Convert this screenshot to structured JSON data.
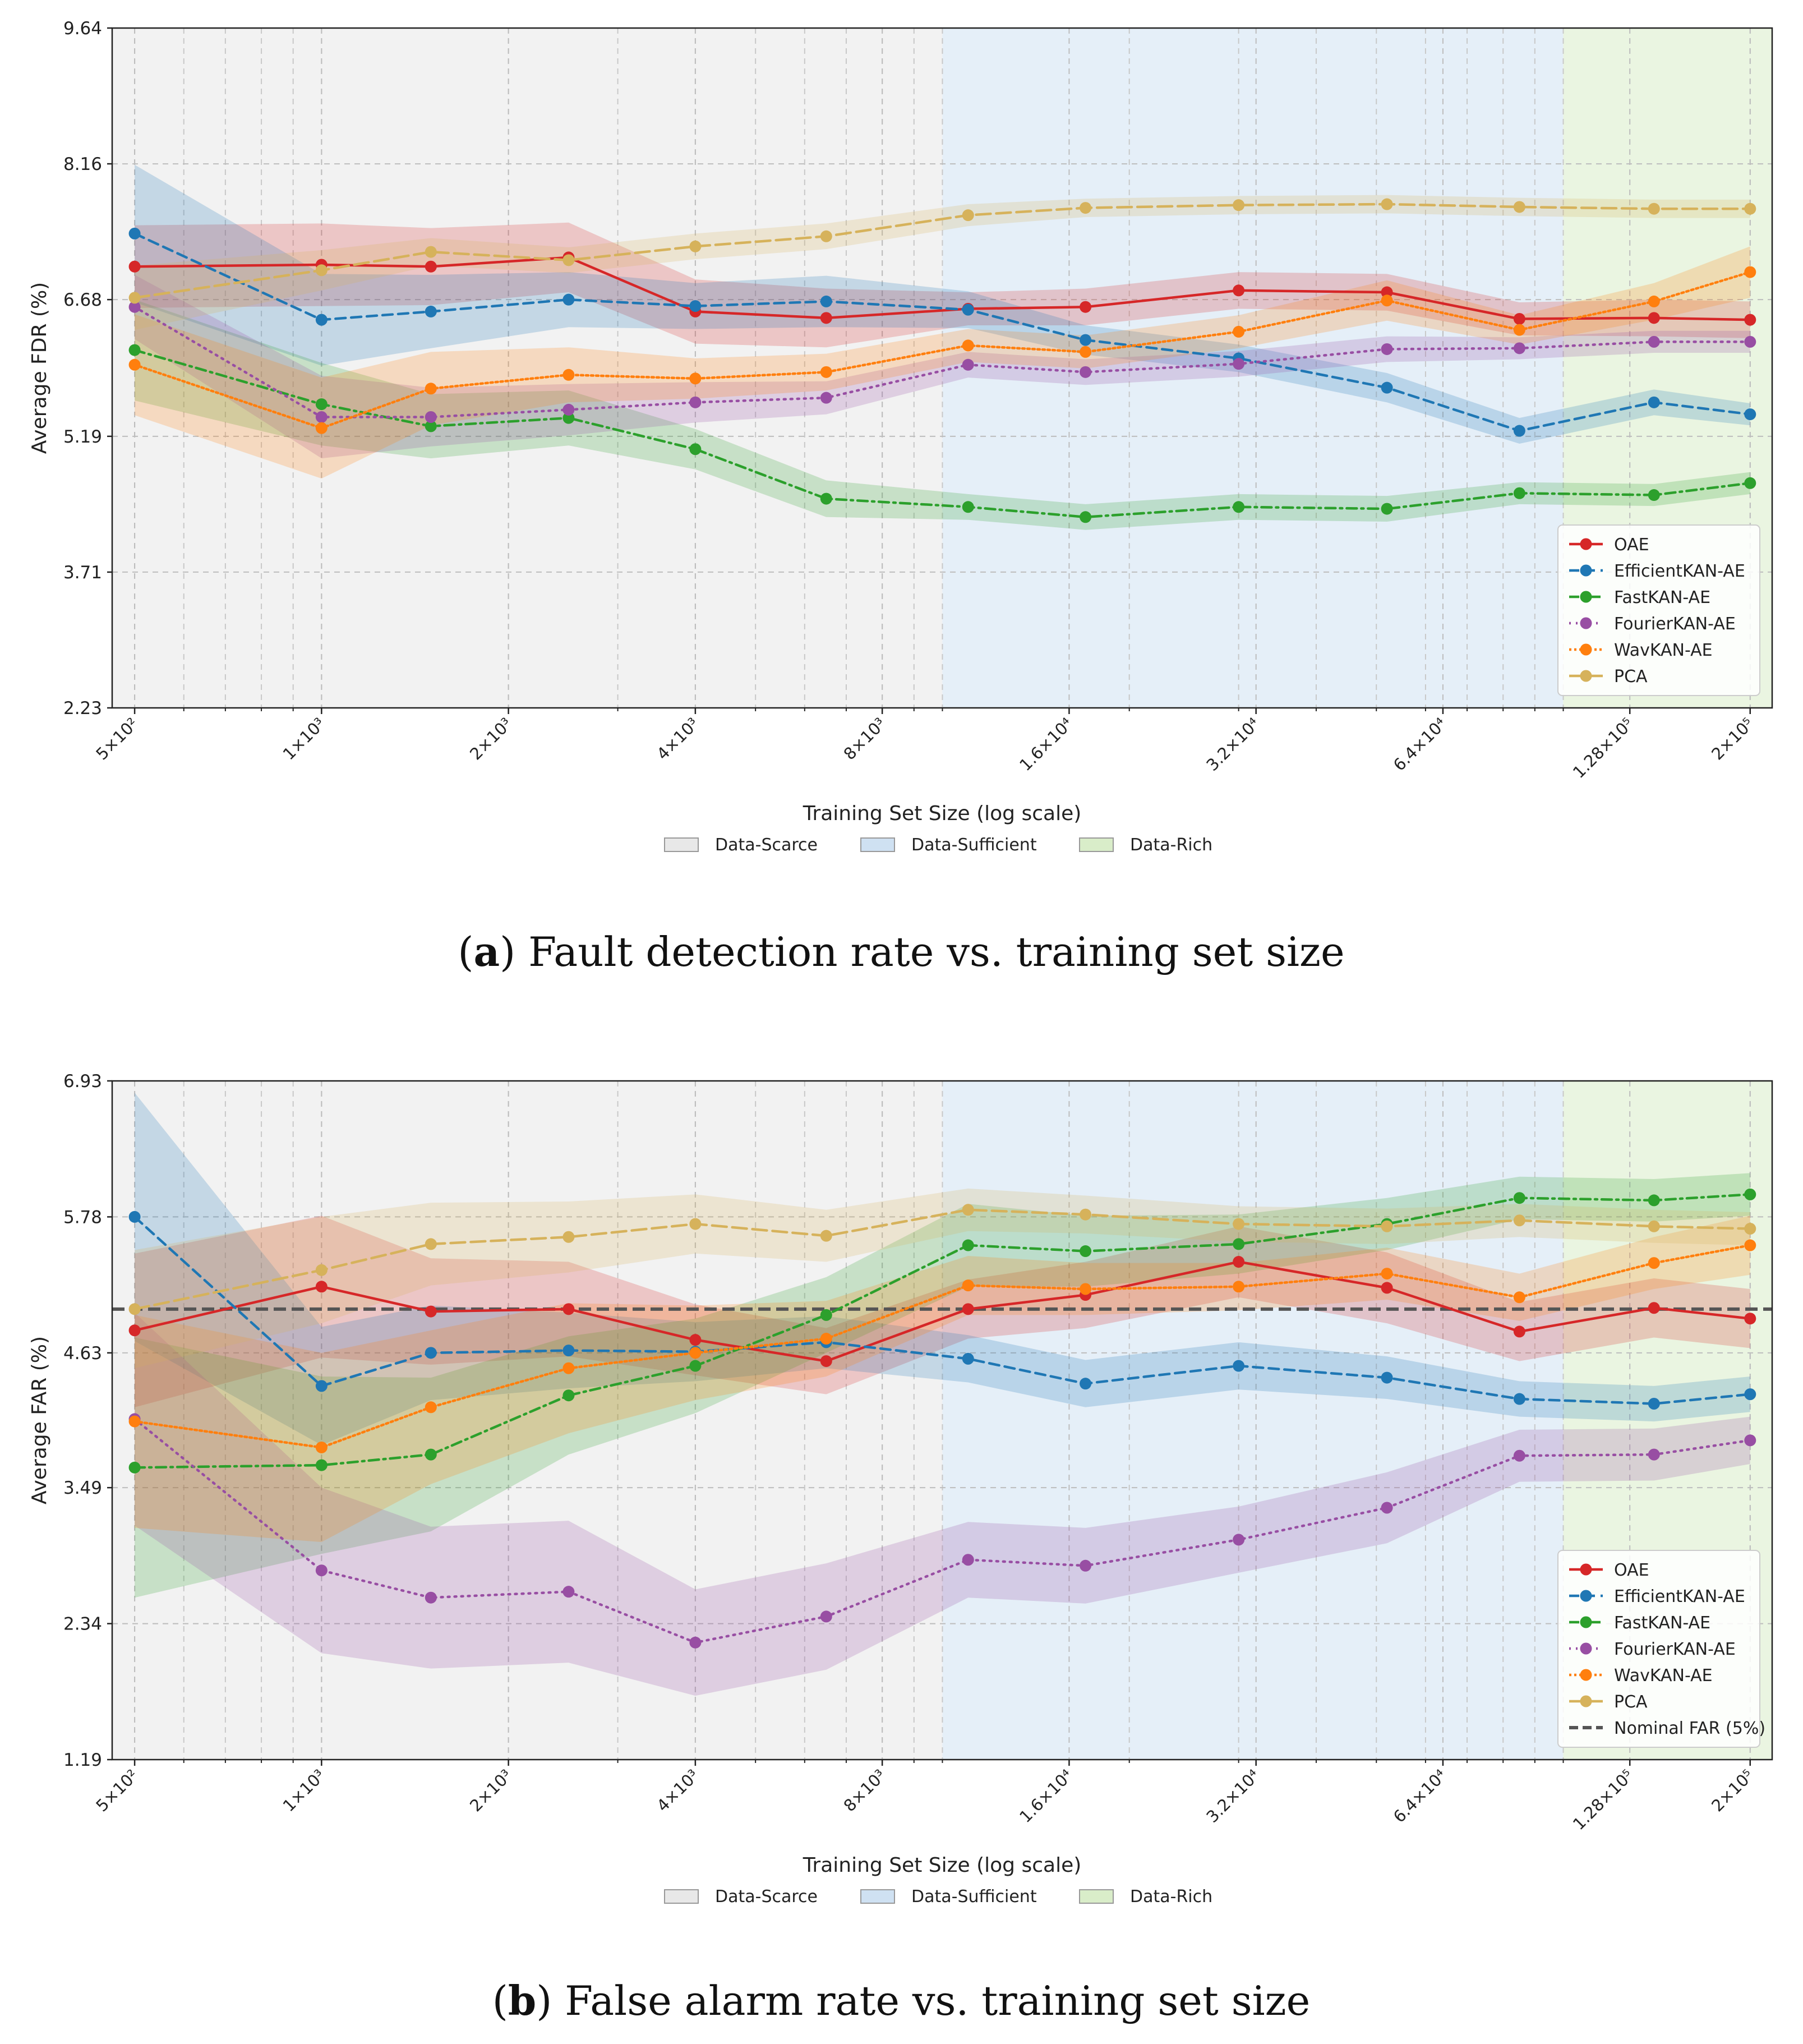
{
  "chart_data": [
    {
      "type": "line",
      "ylabel": "Average FDR (%)",
      "xlabel": "Training Set Size (log scale)",
      "xscale": "log",
      "xlim": [
        460,
        217000
      ],
      "ylim": [
        2.23,
        9.64
      ],
      "yticks": [
        "2.23",
        "3.71",
        "5.19",
        "6.68",
        "8.16",
        "9.64"
      ],
      "x_tick_values": [
        500,
        1000,
        2000,
        4000,
        8000,
        16000,
        32000,
        64000,
        128000,
        200000
      ],
      "x_tick_labels": [
        "5×10²",
        "1×10³",
        "2×10³",
        "4×10³",
        "8×10³",
        "1.6×10⁴",
        "3.2×10⁴",
        "6.4×10⁴",
        "1.28×10⁵",
        "2×10⁵"
      ],
      "x": [
        500,
        1000,
        1500,
        2500,
        4000,
        6500,
        11000,
        17000,
        30000,
        52000,
        85000,
        140000,
        200000
      ],
      "regions": [
        {
          "name": "Data-Scarce",
          "from": 460,
          "to": 10000,
          "color": "#e8e8e8"
        },
        {
          "name": "Data-Sufficient",
          "from": 10000,
          "to": 100000,
          "color": "#cfe1f2"
        },
        {
          "name": "Data-Rich",
          "from": 100000,
          "to": 217000,
          "color": "#d9edc9"
        }
      ],
      "series": [
        {
          "name": "OAE",
          "color": "#d62728",
          "dash": "solid",
          "values": [
            7.04,
            7.06,
            7.04,
            7.14,
            6.55,
            6.48,
            6.58,
            6.6,
            6.78,
            6.76,
            6.47,
            6.48,
            6.46
          ],
          "band": [
            0.45,
            0.45,
            0.42,
            0.38,
            0.35,
            0.32,
            0.18,
            0.2,
            0.2,
            0.2,
            0.18,
            0.2,
            0.2
          ]
        },
        {
          "name": "EfficientKAN-AE",
          "color": "#1f77b4",
          "dash": "dashed",
          "values": [
            7.4,
            6.46,
            6.55,
            6.68,
            6.61,
            6.66,
            6.57,
            6.24,
            6.04,
            5.72,
            5.25,
            5.56,
            5.43
          ],
          "band": [
            0.75,
            0.5,
            0.4,
            0.3,
            0.25,
            0.28,
            0.2,
            0.16,
            0.15,
            0.16,
            0.14,
            0.14,
            0.12
          ]
        },
        {
          "name": "FastKAN-AE",
          "color": "#2ca02c",
          "dash": "dashdot",
          "values": [
            6.13,
            5.54,
            5.3,
            5.39,
            5.05,
            4.51,
            4.42,
            4.31,
            4.42,
            4.4,
            4.57,
            4.55,
            4.68
          ],
          "band": [
            0.55,
            0.45,
            0.35,
            0.3,
            0.22,
            0.2,
            0.14,
            0.14,
            0.14,
            0.14,
            0.12,
            0.12,
            0.12
          ]
        },
        {
          "name": "FourierKAN-AE",
          "color": "#984ea3",
          "dash": "dotted",
          "values": [
            6.6,
            5.4,
            5.4,
            5.48,
            5.56,
            5.61,
            5.97,
            5.89,
            5.98,
            6.14,
            6.15,
            6.22,
            6.22
          ],
          "band": [
            0.35,
            0.45,
            0.32,
            0.28,
            0.22,
            0.18,
            0.14,
            0.14,
            0.14,
            0.14,
            0.12,
            0.12,
            0.12
          ]
        },
        {
          "name": "WavKAN-AE",
          "color": "#ff7f0e",
          "dash": "densedot",
          "values": [
            5.97,
            5.28,
            5.71,
            5.86,
            5.82,
            5.89,
            6.18,
            6.11,
            6.33,
            6.67,
            6.35,
            6.66,
            6.98
          ],
          "band": [
            0.55,
            0.55,
            0.4,
            0.3,
            0.22,
            0.2,
            0.18,
            0.18,
            0.18,
            0.22,
            0.16,
            0.2,
            0.28
          ]
        },
        {
          "name": "PCA",
          "color": "#d6b25b",
          "dash": "longdash",
          "values": [
            6.7,
            7.0,
            7.2,
            7.11,
            7.26,
            7.37,
            7.6,
            7.68,
            7.71,
            7.72,
            7.69,
            7.67,
            7.67
          ],
          "band": [
            0.35,
            0.22,
            0.15,
            0.14,
            0.14,
            0.14,
            0.12,
            0.1,
            0.1,
            0.1,
            0.1,
            0.1,
            0.1
          ]
        }
      ],
      "legend_position": "lower right",
      "legend_entries": [
        "OAE",
        "EfficientKAN-AE",
        "FastKAN-AE",
        "FourierKAN-AE",
        "WavKAN-AE",
        "PCA"
      ],
      "caption_bold": "a",
      "caption_text": "Fault detection rate vs. training set size"
    },
    {
      "type": "line",
      "ylabel": "Average FAR (%)",
      "xlabel": "Training Set Size (log scale)",
      "xscale": "log",
      "xlim": [
        460,
        217000
      ],
      "ylim": [
        1.19,
        6.93
      ],
      "yticks": [
        "1.19",
        "2.34",
        "3.49",
        "4.63",
        "5.78",
        "6.93"
      ],
      "x_tick_values": [
        500,
        1000,
        2000,
        4000,
        8000,
        16000,
        32000,
        64000,
        128000,
        200000
      ],
      "x_tick_labels": [
        "5×10²",
        "1×10³",
        "2×10³",
        "4×10³",
        "8×10³",
        "1.6×10⁴",
        "3.2×10⁴",
        "6.4×10⁴",
        "1.28×10⁵",
        "2×10⁵"
      ],
      "x": [
        500,
        1000,
        1500,
        2500,
        4000,
        6500,
        11000,
        17000,
        30000,
        52000,
        85000,
        140000,
        200000
      ],
      "regions": [
        {
          "name": "Data-Scarce",
          "from": 460,
          "to": 10000,
          "color": "#e8e8e8"
        },
        {
          "name": "Data-Sufficient",
          "from": 10000,
          "to": 100000,
          "color": "#cfe1f2"
        },
        {
          "name": "Data-Rich",
          "from": 100000,
          "to": 217000,
          "color": "#d9edc9"
        }
      ],
      "series": [
        {
          "name": "OAE",
          "color": "#d62728",
          "dash": "solid",
          "values": [
            4.82,
            5.19,
            4.98,
            5.0,
            4.74,
            4.56,
            5.0,
            5.12,
            5.4,
            5.18,
            4.81,
            5.01,
            4.92
          ],
          "band": [
            0.65,
            0.6,
            0.45,
            0.4,
            0.3,
            0.28,
            0.25,
            0.28,
            0.3,
            0.3,
            0.25,
            0.25,
            0.25
          ]
        },
        {
          "name": "EfficientKAN-AE",
          "color": "#1f77b4",
          "dash": "dashed",
          "values": [
            5.78,
            4.35,
            4.63,
            4.65,
            4.64,
            4.72,
            4.58,
            4.37,
            4.52,
            4.42,
            4.24,
            4.2,
            4.28
          ],
          "band": [
            1.05,
            0.5,
            0.4,
            0.32,
            0.25,
            0.22,
            0.2,
            0.2,
            0.2,
            0.18,
            0.15,
            0.15,
            0.15
          ]
        },
        {
          "name": "FastKAN-AE",
          "color": "#2ca02c",
          "dash": "dashdot",
          "values": [
            3.66,
            3.68,
            3.77,
            4.27,
            4.52,
            4.95,
            5.54,
            5.49,
            5.55,
            5.72,
            5.94,
            5.92,
            5.97
          ],
          "band": [
            1.1,
            0.75,
            0.65,
            0.5,
            0.4,
            0.32,
            0.35,
            0.3,
            0.25,
            0.22,
            0.18,
            0.18,
            0.18
          ]
        },
        {
          "name": "FourierKAN-AE",
          "color": "#984ea3",
          "dash": "dotted",
          "values": [
            4.07,
            2.79,
            2.56,
            2.61,
            2.18,
            2.4,
            2.88,
            2.83,
            3.05,
            3.32,
            3.76,
            3.77,
            3.89
          ],
          "band": [
            0.9,
            0.7,
            0.6,
            0.6,
            0.45,
            0.45,
            0.32,
            0.32,
            0.28,
            0.3,
            0.22,
            0.22,
            0.2
          ]
        },
        {
          "name": "WavKAN-AE",
          "color": "#ff7f0e",
          "dash": "densedot",
          "values": [
            4.05,
            3.83,
            4.17,
            4.5,
            4.63,
            4.75,
            5.2,
            5.17,
            5.19,
            5.3,
            5.1,
            5.39,
            5.54
          ],
          "band": [
            0.9,
            0.8,
            0.65,
            0.55,
            0.4,
            0.32,
            0.25,
            0.22,
            0.2,
            0.22,
            0.2,
            0.22,
            0.25
          ]
        },
        {
          "name": "PCA",
          "color": "#d6b25b",
          "dash": "longdash",
          "values": [
            5.0,
            5.33,
            5.55,
            5.61,
            5.72,
            5.62,
            5.84,
            5.8,
            5.72,
            5.7,
            5.75,
            5.7,
            5.68
          ],
          "band": [
            0.5,
            0.45,
            0.35,
            0.3,
            0.25,
            0.22,
            0.18,
            0.16,
            0.15,
            0.15,
            0.14,
            0.14,
            0.14
          ]
        }
      ],
      "reference_line": {
        "name": "Nominal FAR (5%)",
        "value": 5.0,
        "color": "#555555"
      },
      "legend_position": "lower right",
      "legend_entries": [
        "OAE",
        "EfficientKAN-AE",
        "FastKAN-AE",
        "FourierKAN-AE",
        "WavKAN-AE",
        "PCA",
        "Nominal FAR (5%)"
      ],
      "caption_bold": "b",
      "caption_text": "False alarm rate vs. training set size"
    }
  ]
}
